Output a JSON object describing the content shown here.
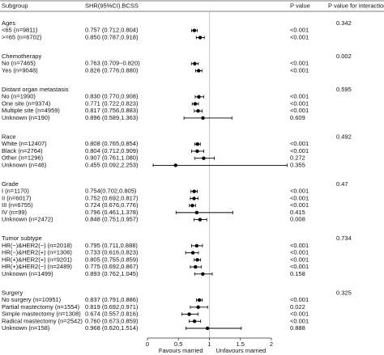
{
  "chart_data": {
    "type": "forest",
    "columns": [
      "Subgroup",
      "SHR(95%CI).BCSS",
      "P value",
      "P value for interaction"
    ],
    "xlim": [
      0,
      2
    ],
    "xticks": [
      0,
      0.5,
      1,
      1.5,
      2
    ],
    "reference": 1,
    "x_labels": [
      "Favours married",
      "Unfavours married"
    ],
    "color": "#000000",
    "groups": [
      {
        "name": "Ages",
        "p_interaction": 0.342,
        "rows": [
          {
            "label": "<65 (n=9811)",
            "shr": "0.757 (0.712,0.804)",
            "hr": 0.757,
            "lo": 0.712,
            "hi": 0.804,
            "p": "<0.001"
          },
          {
            "label": ">=65 (n=6702)",
            "shr": "0.850 (0.787,0.918)",
            "hr": 0.85,
            "lo": 0.787,
            "hi": 0.918,
            "p": "<0.001"
          }
        ]
      },
      {
        "name": "Chemotherapy",
        "p_interaction": 0.002,
        "rows": [
          {
            "label": "No (n=7465)",
            "shr": "0.763 (0.709−0.820)",
            "hr": 0.763,
            "lo": 0.709,
            "hi": 0.82,
            "p": "<0.001"
          },
          {
            "label": "Yes (n=9048)",
            "shr": "0.826 (0.776,0.880)",
            "hr": 0.826,
            "lo": 0.776,
            "hi": 0.88,
            "p": "<0.001"
          }
        ]
      },
      {
        "name": "Distant organ metastasis",
        "p_interaction": 0.595,
        "rows": [
          {
            "label": "No (n=1990)",
            "shr": "0.830 (0.770,0.908)",
            "hr": 0.83,
            "lo": 0.77,
            "hi": 0.908,
            "p": "<0.001"
          },
          {
            "label": "One site (n=9374)",
            "shr": "0.771 (0.722,0.823)",
            "hr": 0.771,
            "lo": 0.722,
            "hi": 0.823,
            "p": "<0.001"
          },
          {
            "label": "Multiple site (n=4959)",
            "shr": "0.817 (0.756,0.883)",
            "hr": 0.817,
            "lo": 0.756,
            "hi": 0.883,
            "p": "<0.001"
          },
          {
            "label": "Unknown (n=190)",
            "shr": "0.896 (0.589,1.363)",
            "hr": 0.896,
            "lo": 0.589,
            "hi": 1.363,
            "p": "0.609"
          }
        ]
      },
      {
        "name": "Race",
        "p_interaction": 0.492,
        "rows": [
          {
            "label": "White (n=12407)",
            "shr": "0.808 (0.765,0.854)",
            "hr": 0.808,
            "lo": 0.765,
            "hi": 0.854,
            "p": "<0.001"
          },
          {
            "label": "Black (n=2764)",
            "shr": "0.804 (0.712,0.909)",
            "hr": 0.804,
            "lo": 0.712,
            "hi": 0.909,
            "p": "<0.001"
          },
          {
            "label": "Other (n=1296)",
            "shr": "0.907 (0.761,1.080)",
            "hr": 0.907,
            "lo": 0.761,
            "hi": 1.08,
            "p": "0.272"
          },
          {
            "label": "Unknown (n=46)",
            "shr": "0.455 (0.092,2.253)",
            "hr": 0.455,
            "lo": 0.092,
            "hi": 2.253,
            "p": "0.355"
          }
        ]
      },
      {
        "name": "Grade",
        "p_interaction": 0.47,
        "rows": [
          {
            "label": "I (n=1170)",
            "shr": "0.754(0.702,0.805)",
            "hr": 0.754,
            "lo": 0.702,
            "hi": 0.805,
            "p": "<0.001"
          },
          {
            "label": "II (n=6017)",
            "shr": "0.752 (0.692,0.817)",
            "hr": 0.752,
            "lo": 0.692,
            "hi": 0.817,
            "p": "<0.001"
          },
          {
            "label": "III (n=6755)",
            "shr": "0.724 (0.676,0.776)",
            "hr": 0.724,
            "lo": 0.676,
            "hi": 0.776,
            "p": "<0.001"
          },
          {
            "label": "IV (n=99)",
            "shr": "0.796 (0.461,1.378)",
            "hr": 0.796,
            "lo": 0.461,
            "hi": 1.378,
            "p": "0.415"
          },
          {
            "label": "Unknown (n=2472)",
            "shr": "0.848 (0.751,0.957)",
            "hr": 0.848,
            "lo": 0.751,
            "hi": 0.957,
            "p": "0.008"
          }
        ]
      },
      {
        "name": "Tumor subtype",
        "p_interaction": 0.734,
        "rows": [
          {
            "label": "HR(−)&HER2(−) (n=2018)",
            "shr": "0.795 (0.711,0.888)",
            "hr": 0.795,
            "lo": 0.711,
            "hi": 0.888,
            "p": "<0.001"
          },
          {
            "label": "HR(−)&HER2(+) (n=1306)",
            "shr": "0.733 (0.616,0.823)",
            "hr": 0.733,
            "lo": 0.616,
            "hi": 0.823,
            "p": "<0.001"
          },
          {
            "label": "HR(+)&HER2(+) (n=9201)",
            "shr": "0.805 (0.755,0.859)",
            "hr": 0.805,
            "lo": 0.755,
            "hi": 0.859,
            "p": "<0.001"
          },
          {
            "label": "HR(+)&HER2(−) (n=2489)",
            "shr": "0.775 (0.692,0.867)",
            "hr": 0.775,
            "lo": 0.692,
            "hi": 0.867,
            "p": "<0.001"
          },
          {
            "label": "Unknown (n=1499)",
            "shr": "0.893 (0.762,1.045)",
            "hr": 0.893,
            "lo": 0.762,
            "hi": 1.045,
            "p": "0.158"
          }
        ]
      },
      {
        "name": "Surgery",
        "p_interaction": 0.325,
        "rows": [
          {
            "label": "No surgery (n=10951)",
            "shr": "0.837 (0.791,0.886)",
            "hr": 0.837,
            "lo": 0.791,
            "hi": 0.886,
            "p": "<0.001"
          },
          {
            "label": "Partial mastectomy (n=1554)",
            "shr": "0.819 (0.692,0.971)",
            "hr": 0.819,
            "lo": 0.692,
            "hi": 0.971,
            "p": "0.022"
          },
          {
            "label": "Simple mastectomy (n=1308)",
            "shr": "0.674 (0.557,0.816)",
            "hr": 0.674,
            "lo": 0.557,
            "hi": 0.816,
            "p": "<0.001"
          },
          {
            "label": "Radical mastectomy (n=2542)",
            "shr": "0.760 (0.673,0.859)",
            "hr": 0.76,
            "lo": 0.673,
            "hi": 0.859,
            "p": "<0.001"
          },
          {
            "label": "Unknown (n=158)",
            "shr": "0.968 (0.620,1.514)",
            "hr": 0.968,
            "lo": 0.62,
            "hi": 1.514,
            "p": "0.888"
          }
        ]
      }
    ]
  }
}
